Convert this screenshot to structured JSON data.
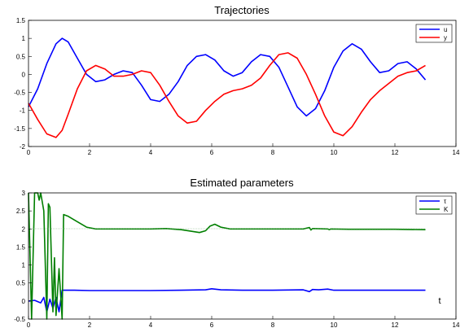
{
  "chart_data": [
    {
      "type": "line",
      "title": "Trajectories",
      "xlabel": "",
      "ylabel": "",
      "xlim": [
        0,
        14
      ],
      "ylim": [
        -2,
        1.5
      ],
      "xticks": [
        "0",
        "2",
        "4",
        "6",
        "8",
        "10",
        "12",
        "14"
      ],
      "yticks": [
        "-2",
        "-1.5",
        "-1",
        "-0.5",
        "0",
        "0.5",
        "1",
        "1.5"
      ],
      "grid": false,
      "legend_position": "top-right",
      "series": [
        {
          "name": "u",
          "color": "#0000ff",
          "x": [
            0,
            0.3,
            0.6,
            0.9,
            1.1,
            1.3,
            1.6,
            1.9,
            2.2,
            2.5,
            2.8,
            3.1,
            3.4,
            3.7,
            4.0,
            4.3,
            4.6,
            4.9,
            5.2,
            5.5,
            5.8,
            6.1,
            6.4,
            6.7,
            7.0,
            7.3,
            7.6,
            7.9,
            8.2,
            8.5,
            8.8,
            9.1,
            9.4,
            9.7,
            10.0,
            10.3,
            10.6,
            10.9,
            11.2,
            11.5,
            11.8,
            12.1,
            12.4,
            12.7,
            13.0
          ],
          "y": [
            -0.9,
            -0.4,
            0.3,
            0.85,
            1.0,
            0.9,
            0.45,
            0.0,
            -0.2,
            -0.15,
            0.0,
            0.1,
            0.05,
            -0.3,
            -0.7,
            -0.75,
            -0.55,
            -0.2,
            0.25,
            0.5,
            0.55,
            0.4,
            0.1,
            -0.05,
            0.05,
            0.35,
            0.55,
            0.5,
            0.2,
            -0.35,
            -0.9,
            -1.15,
            -0.95,
            -0.45,
            0.2,
            0.65,
            0.85,
            0.7,
            0.35,
            0.05,
            0.1,
            0.3,
            0.35,
            0.15,
            -0.15
          ]
        },
        {
          "name": "y",
          "color": "#ff0000",
          "x": [
            0,
            0.3,
            0.6,
            0.9,
            1.1,
            1.3,
            1.6,
            1.9,
            2.2,
            2.5,
            2.8,
            3.1,
            3.4,
            3.7,
            4.0,
            4.3,
            4.6,
            4.9,
            5.2,
            5.5,
            5.8,
            6.1,
            6.4,
            6.7,
            7.0,
            7.3,
            7.6,
            7.9,
            8.2,
            8.5,
            8.8,
            9.1,
            9.4,
            9.7,
            10.0,
            10.3,
            10.6,
            10.9,
            11.2,
            11.5,
            11.8,
            12.1,
            12.4,
            12.7,
            13.0
          ],
          "y": [
            -0.8,
            -1.25,
            -1.65,
            -1.75,
            -1.55,
            -1.1,
            -0.4,
            0.1,
            0.25,
            0.15,
            -0.05,
            -0.05,
            0.0,
            0.1,
            0.05,
            -0.3,
            -0.75,
            -1.15,
            -1.35,
            -1.3,
            -1.0,
            -0.75,
            -0.55,
            -0.45,
            -0.4,
            -0.3,
            -0.1,
            0.25,
            0.55,
            0.6,
            0.45,
            0.0,
            -0.55,
            -1.15,
            -1.6,
            -1.7,
            -1.45,
            -1.05,
            -0.7,
            -0.45,
            -0.25,
            -0.05,
            0.05,
            0.1,
            0.25
          ]
        }
      ]
    },
    {
      "type": "line",
      "title": "Estimated parameters",
      "xlabel": "t",
      "ylabel": "",
      "xlim": [
        0,
        14
      ],
      "ylim": [
        -0.5,
        3
      ],
      "xticks": [
        "0",
        "2",
        "4",
        "6",
        "8",
        "10",
        "12",
        "14"
      ],
      "yticks": [
        "-0.5",
        "0",
        "0.5",
        "1",
        "1.5",
        "2",
        "2.5",
        "3"
      ],
      "grid": false,
      "legend_position": "top-right",
      "series": [
        {
          "name": "τ",
          "color": "#0000ff",
          "x": [
            0,
            0.2,
            0.4,
            0.5,
            0.6,
            0.7,
            0.8,
            0.9,
            1.0,
            1.05,
            1.1,
            1.2,
            1.5,
            2.0,
            3.0,
            4.0,
            5.0,
            5.8,
            6.0,
            6.3,
            7.0,
            8.0,
            9.0,
            9.2,
            9.3,
            9.5,
            9.8,
            10.0,
            11.0,
            12.0,
            13.0
          ],
          "y": [
            0.0,
            0.02,
            -0.05,
            0.1,
            -0.3,
            0.05,
            -0.2,
            0.1,
            -0.3,
            0.0,
            0.3,
            0.3,
            0.3,
            0.29,
            0.29,
            0.29,
            0.3,
            0.31,
            0.34,
            0.31,
            0.3,
            0.3,
            0.31,
            0.26,
            0.32,
            0.31,
            0.33,
            0.3,
            0.3,
            0.3,
            0.3
          ]
        },
        {
          "name": "K",
          "color": "#007f00",
          "x": [
            0,
            0.1,
            0.2,
            0.3,
            0.35,
            0.4,
            0.5,
            0.6,
            0.65,
            0.7,
            0.8,
            0.85,
            0.9,
            1.0,
            1.1,
            1.15,
            1.3,
            1.6,
            1.9,
            2.2,
            2.6,
            3.0,
            4.0,
            4.5,
            5.0,
            5.3,
            5.6,
            5.8,
            5.95,
            6.1,
            6.3,
            6.6,
            7.0,
            8.0,
            9.0,
            9.2,
            9.25,
            9.3,
            9.8,
            9.85,
            9.9,
            10.5,
            11.0,
            12.0,
            13.0
          ],
          "y": [
            3.0,
            -0.5,
            3.0,
            3.0,
            2.8,
            3.0,
            2.5,
            -0.5,
            2.7,
            2.6,
            -0.3,
            1.2,
            -0.4,
            0.9,
            -0.5,
            2.4,
            2.35,
            2.2,
            2.05,
            2.0,
            2.0,
            2.0,
            2.0,
            2.01,
            1.98,
            1.94,
            1.9,
            1.95,
            2.08,
            2.13,
            2.05,
            2.0,
            2.0,
            2.0,
            2.0,
            2.04,
            1.97,
            2.01,
            2.0,
            1.98,
            2.0,
            1.99,
            1.99,
            1.99,
            1.98
          ]
        }
      ]
    }
  ]
}
